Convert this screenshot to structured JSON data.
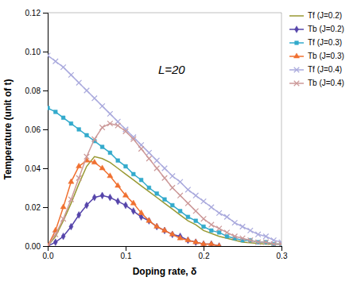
{
  "chart_data": {
    "type": "line",
    "title": "L=20",
    "xlabel": "Doping rate, δ",
    "ylabel": "Temperature (unit of t)",
    "xlim": [
      0,
      0.3
    ],
    "ylim": [
      0,
      0.12
    ],
    "xticks": [
      {
        "value": 0,
        "label": "0.0"
      },
      0.1,
      0.2,
      0.3
    ],
    "yticks": [
      {
        "value": 0,
        "label": "0.00"
      },
      0.02,
      0.04,
      0.06,
      0.08,
      {
        "value": 0.1,
        "label": "0.10"
      },
      0.12
    ],
    "legend": "right",
    "series": [
      {
        "name": "Tf (J=0.2)",
        "color": "#999933",
        "marker": null,
        "line_style": "solid",
        "x": [
          0.0,
          0.01,
          0.02,
          0.03,
          0.04,
          0.05,
          0.06,
          0.07,
          0.08,
          0.09,
          0.1,
          0.11,
          0.12,
          0.13,
          0.14,
          0.15,
          0.16,
          0.17,
          0.18,
          0.19,
          0.2,
          0.22,
          0.25,
          0.28,
          0.3
        ],
        "values": [
          0.0,
          0.005,
          0.013,
          0.022,
          0.032,
          0.041,
          0.046,
          0.045,
          0.043,
          0.04,
          0.037,
          0.034,
          0.031,
          0.028,
          0.025,
          0.022,
          0.019,
          0.016,
          0.013,
          0.011,
          0.008,
          0.005,
          0.002,
          0.001,
          0.001
        ]
      },
      {
        "name": "Tb (J=0.2)",
        "color": "#5544aa",
        "marker": "diamond",
        "line_style": "solid",
        "x": [
          0.0,
          0.01,
          0.02,
          0.03,
          0.04,
          0.05,
          0.06,
          0.07,
          0.08,
          0.09,
          0.1,
          0.11,
          0.12,
          0.13,
          0.14,
          0.15,
          0.16,
          0.17,
          0.18,
          0.19,
          0.2,
          0.21,
          0.22
        ],
        "values": [
          0.0,
          0.002,
          0.005,
          0.01,
          0.016,
          0.021,
          0.025,
          0.026,
          0.025,
          0.023,
          0.021,
          0.018,
          0.015,
          0.013,
          0.01,
          0.008,
          0.006,
          0.005,
          0.003,
          0.002,
          0.001,
          0.001,
          0.0
        ]
      },
      {
        "name": "Tf (J=0.3)",
        "color": "#33aacc",
        "marker": "square",
        "line_style": "solid",
        "x": [
          0.0,
          0.01,
          0.02,
          0.03,
          0.04,
          0.05,
          0.06,
          0.07,
          0.08,
          0.09,
          0.1,
          0.11,
          0.12,
          0.13,
          0.14,
          0.15,
          0.16,
          0.17,
          0.18,
          0.19,
          0.2,
          0.21,
          0.22,
          0.23,
          0.24,
          0.25,
          0.26,
          0.27,
          0.28,
          0.29,
          0.3
        ],
        "values": [
          0.071,
          0.069,
          0.066,
          0.063,
          0.06,
          0.057,
          0.054,
          0.051,
          0.048,
          0.044,
          0.041,
          0.037,
          0.034,
          0.03,
          0.027,
          0.024,
          0.021,
          0.018,
          0.015,
          0.013,
          0.01,
          0.008,
          0.007,
          0.005,
          0.004,
          0.003,
          0.003,
          0.002,
          0.002,
          0.001,
          0.001
        ]
      },
      {
        "name": "Tb (J=0.3)",
        "color": "#f07030",
        "marker": "triangle",
        "line_style": "solid",
        "x": [
          0.0,
          0.01,
          0.02,
          0.03,
          0.04,
          0.05,
          0.06,
          0.07,
          0.08,
          0.09,
          0.1,
          0.11,
          0.12,
          0.13,
          0.14,
          0.15,
          0.16,
          0.17,
          0.18,
          0.19,
          0.2,
          0.21,
          0.22
        ],
        "values": [
          0.0,
          0.008,
          0.02,
          0.033,
          0.041,
          0.044,
          0.043,
          0.04,
          0.036,
          0.031,
          0.026,
          0.022,
          0.017,
          0.013,
          0.01,
          0.008,
          0.006,
          0.004,
          0.003,
          0.002,
          0.001,
          0.001,
          0.0
        ]
      },
      {
        "name": "Tf (J=0.4)",
        "color": "#aaaadd",
        "marker": "x",
        "line_style": "solid",
        "x": [
          0.0,
          0.01,
          0.02,
          0.03,
          0.04,
          0.05,
          0.06,
          0.07,
          0.08,
          0.09,
          0.1,
          0.11,
          0.12,
          0.13,
          0.14,
          0.15,
          0.16,
          0.17,
          0.18,
          0.19,
          0.2,
          0.21,
          0.22,
          0.23,
          0.24,
          0.25,
          0.26,
          0.27,
          0.28,
          0.29,
          0.3
        ],
        "values": [
          0.098,
          0.095,
          0.092,
          0.088,
          0.084,
          0.08,
          0.076,
          0.072,
          0.068,
          0.064,
          0.06,
          0.056,
          0.052,
          0.048,
          0.044,
          0.04,
          0.036,
          0.033,
          0.029,
          0.026,
          0.023,
          0.02,
          0.017,
          0.015,
          0.012,
          0.01,
          0.008,
          0.006,
          0.005,
          0.003,
          0.002
        ]
      },
      {
        "name": "Tb (J=0.4)",
        "color": "#cc9999",
        "marker": "x",
        "line_style": "solid",
        "x": [
          0.0,
          0.01,
          0.02,
          0.03,
          0.04,
          0.05,
          0.06,
          0.07,
          0.08,
          0.09,
          0.1,
          0.11,
          0.12,
          0.13,
          0.14,
          0.15,
          0.16,
          0.17,
          0.18,
          0.19,
          0.2,
          0.21,
          0.22,
          0.23,
          0.24,
          0.25,
          0.26,
          0.27,
          0.28,
          0.29,
          0.3
        ],
        "values": [
          0.0,
          0.006,
          0.014,
          0.024,
          0.035,
          0.046,
          0.055,
          0.061,
          0.063,
          0.062,
          0.059,
          0.055,
          0.05,
          0.045,
          0.04,
          0.035,
          0.03,
          0.026,
          0.022,
          0.018,
          0.014,
          0.011,
          0.009,
          0.007,
          0.005,
          0.004,
          0.003,
          0.002,
          0.002,
          0.001,
          0.001
        ]
      }
    ]
  }
}
